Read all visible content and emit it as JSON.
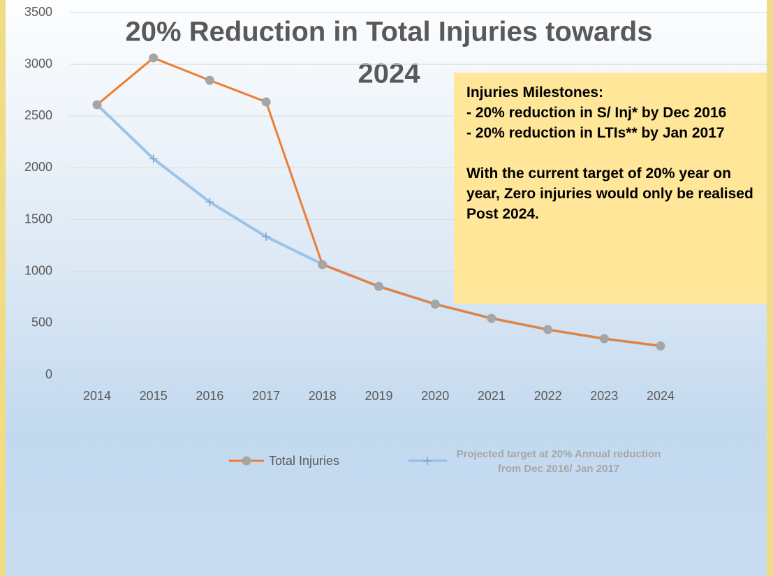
{
  "chart_data": {
    "type": "line",
    "title": [
      "20% Reduction in Total Injuries towards",
      "2024"
    ],
    "annotation": [
      "Injuries Milestones:",
      " - 20% reduction in S/ Inj* by Dec 2016",
      "-  20% reduction in LTIs**  by Jan 2017",
      "With the current target of 20% year on year, Zero injuries would only be realised Post 2024."
    ],
    "categories": [
      "2014",
      "2015",
      "2016",
      "2017",
      "2018",
      "2019",
      "2020",
      "2021",
      "2022",
      "2023",
      "2024"
    ],
    "series": [
      {
        "name": "Total Injuries",
        "color": "#ed7d31",
        "marker_color": "#a5a5a5",
        "values": [
          2610,
          3062,
          2846,
          2637,
          1065,
          855,
          684,
          547,
          438,
          350,
          280
        ]
      },
      {
        "name": "Projected target at 20% Annual reduction from Dec 2016/ Jan 2017",
        "color": "#9dc3e6",
        "values": [
          2610,
          2088,
          1670,
          1336,
          1069,
          855,
          684,
          547,
          438,
          350,
          280
        ]
      }
    ],
    "ylim": [
      0,
      3500
    ],
    "yticks": [
      0,
      500,
      1000,
      1500,
      2000,
      2500,
      3000,
      3500
    ],
    "grid": true
  }
}
